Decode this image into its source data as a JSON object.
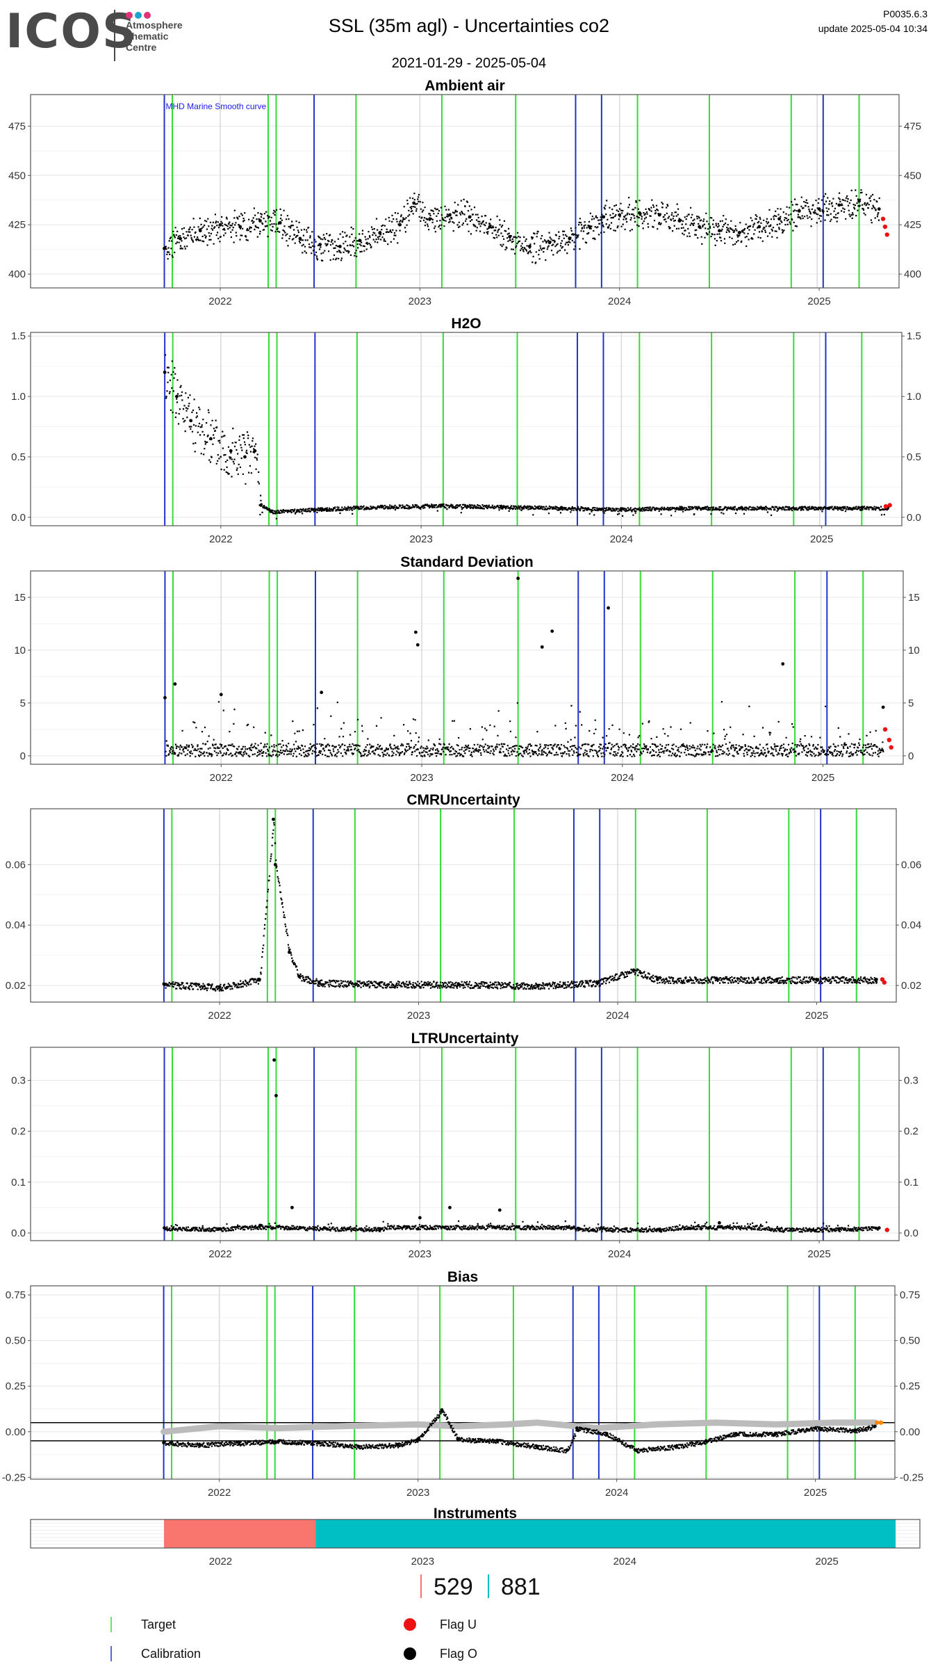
{
  "header": {
    "logo": "ICOS",
    "logo_lines": [
      "Atmosphere",
      "Thematic",
      "Centre"
    ],
    "title": "SSL  (35m agl) - Uncertainties co2",
    "date_range": "2021-01-29 - 2025-05-04",
    "code": "P0035.6.3",
    "update": "update  2025-05-04 10:34"
  },
  "colors": {
    "target": "#33dd33",
    "calibration": "#2233cc",
    "flag_u": "#ee1111",
    "flag_o": "#000000",
    "instrument_1": "#f8766d",
    "instrument_2": "#00bfc4",
    "bias_smooth": "#bbbbbb",
    "bias_last": "#ff8800"
  },
  "events": {
    "calibration": [
      2021.72,
      2022.47,
      2023.78,
      2023.91,
      2025.02
    ],
    "target": [
      2021.76,
      2022.24,
      2022.28,
      2022.68,
      2023.11,
      2023.48,
      2024.09,
      2024.45,
      2024.86,
      2025.2
    ],
    "grey": [
      2022.0,
      2023.0,
      2024.0,
      2024.99
    ]
  },
  "chart_data": [
    {
      "type": "scatter",
      "title": "Ambient air",
      "annotation": "MHD Marine Smooth curve",
      "ylim": [
        393,
        491
      ],
      "yticks": [
        400,
        425,
        450,
        475
      ],
      "xticks": [
        "2022",
        "2023",
        "2024",
        "2025"
      ],
      "series": [
        {
          "name": "Flag O",
          "x": [
            2021.72,
            2021.8,
            2021.9,
            2022.0,
            2022.1,
            2022.2,
            2022.3,
            2022.4,
            2022.5,
            2022.6,
            2022.7,
            2022.8,
            2022.9,
            2022.97,
            2023.05,
            2023.15,
            2023.25,
            2023.35,
            2023.45,
            2023.55,
            2023.65,
            2023.75,
            2023.85,
            2023.92,
            2024.0,
            2024.1,
            2024.2,
            2024.3,
            2024.4,
            2024.5,
            2024.6,
            2024.7,
            2024.8,
            2024.9,
            2025.0,
            2025.1,
            2025.2,
            2025.3
          ],
          "y": [
            413,
            418,
            422,
            425,
            424,
            427,
            426,
            418,
            415,
            414,
            417,
            421,
            425,
            436,
            428,
            430,
            429,
            424,
            419,
            414,
            416,
            418,
            424,
            429,
            430,
            431,
            430,
            427,
            424,
            422,
            421,
            424,
            428,
            432,
            433,
            435,
            437,
            433
          ]
        },
        {
          "name": "Flag U",
          "x": [
            2025.32,
            2025.33,
            2025.34
          ],
          "y": [
            428,
            424,
            420
          ]
        }
      ]
    },
    {
      "type": "scatter",
      "title": "H2O",
      "ylim": [
        -0.07,
        1.53
      ],
      "yticks": [
        0.0,
        0.5,
        1.0,
        1.5
      ],
      "xticks": [
        "2022",
        "2023",
        "2024",
        "2025"
      ],
      "series": [
        {
          "name": "Flag O",
          "x": [
            2021.72,
            2021.78,
            2021.85,
            2021.95,
            2022.05,
            2022.12,
            2022.17,
            2022.2,
            2022.25,
            2022.5,
            2022.8,
            2023.1,
            2023.4,
            2023.7,
            2024.0,
            2024.3,
            2024.6,
            2024.9,
            2025.2,
            2025.33
          ],
          "y": [
            1.2,
            1.0,
            0.8,
            0.65,
            0.55,
            0.5,
            0.55,
            0.1,
            0.05,
            0.07,
            0.09,
            0.1,
            0.09,
            0.08,
            0.07,
            0.08,
            0.08,
            0.08,
            0.08,
            0.08
          ]
        },
        {
          "name": "Flag U",
          "x": [
            2025.32,
            2025.34
          ],
          "y": [
            0.09,
            0.1
          ]
        }
      ]
    },
    {
      "type": "scatter",
      "title": "Standard Deviation",
      "ylim": [
        -0.8,
        17.5
      ],
      "yticks": [
        0,
        5,
        10,
        15
      ],
      "xticks": [
        "2022",
        "2023",
        "2024",
        "2025"
      ],
      "series": [
        {
          "name": "Flag O",
          "x": [
            2021.72,
            2021.77,
            2022.0,
            2022.5,
            2022.97,
            2022.98,
            2023.48,
            2023.6,
            2023.65,
            2023.93,
            2024.8,
            2025.3
          ],
          "y": [
            5.5,
            6.8,
            5.8,
            6.0,
            11.7,
            10.5,
            16.8,
            10.3,
            11.8,
            14.0,
            8.7,
            4.6
          ]
        },
        {
          "name": "Flag U",
          "x": [
            2025.31,
            2025.33,
            2025.34
          ],
          "y": [
            2.5,
            1.5,
            0.8
          ]
        }
      ]
    },
    {
      "type": "scatter",
      "title": "CMRUncertainty",
      "ylim": [
        0.0145,
        0.0785
      ],
      "yticks": [
        0.02,
        0.04,
        0.06
      ],
      "xticks": [
        "2022",
        "2023",
        "2024",
        "2025"
      ],
      "series": [
        {
          "name": "Flag O",
          "x": [
            2021.72,
            2022.0,
            2022.2,
            2022.27,
            2022.28,
            2022.35,
            2022.4,
            2022.5,
            2022.8,
            2023.2,
            2023.6,
            2023.9,
            2024.08,
            2024.2,
            2024.5,
            2024.8,
            2025.0,
            2025.3
          ],
          "y": [
            0.0205,
            0.0195,
            0.022,
            0.075,
            0.06,
            0.031,
            0.023,
            0.021,
            0.0205,
            0.0205,
            0.02,
            0.021,
            0.025,
            0.022,
            0.022,
            0.022,
            0.022,
            0.022
          ]
        },
        {
          "name": "Flag U",
          "x": [
            2025.33,
            2025.34
          ],
          "y": [
            0.022,
            0.021
          ]
        }
      ]
    },
    {
      "type": "scatter",
      "title": "LTRUncertainty",
      "ylim": [
        -0.015,
        0.365
      ],
      "yticks": [
        0.0,
        0.1,
        0.2,
        0.3
      ],
      "xticks": [
        "2022",
        "2023",
        "2024",
        "2025"
      ],
      "series": [
        {
          "name": "Flag O",
          "x": [
            2021.72,
            2022.0,
            2022.2,
            2022.27,
            2022.28,
            2022.36,
            2022.4,
            2022.8,
            2023.0,
            2023.15,
            2023.4,
            2023.8,
            2024.2,
            2024.5,
            2024.8,
            2025.1,
            2025.3
          ],
          "y": [
            0.01,
            0.008,
            0.015,
            0.34,
            0.27,
            0.05,
            0.01,
            0.008,
            0.03,
            0.05,
            0.045,
            0.008,
            0.007,
            0.02,
            0.007,
            0.008,
            0.01
          ]
        },
        {
          "name": "Flag U",
          "x": [
            2025.34
          ],
          "y": [
            0.006
          ]
        }
      ]
    },
    {
      "type": "scatter",
      "title": "Bias",
      "ylim": [
        -0.26,
        0.8
      ],
      "yticks": [
        -0.25,
        0.0,
        0.25,
        0.5,
        0.75
      ],
      "xticks": [
        "2022",
        "2023",
        "2024",
        "2025"
      ],
      "hlines": [
        0.05,
        -0.05
      ],
      "series": [
        {
          "name": "Flag O",
          "x": [
            2021.72,
            2021.9,
            2022.1,
            2022.3,
            2022.5,
            2022.7,
            2022.9,
            2023.0,
            2023.12,
            2023.2,
            2023.4,
            2023.6,
            2023.75,
            2023.8,
            2023.95,
            2024.1,
            2024.3,
            2024.45,
            2024.6,
            2024.8,
            2025.0,
            2025.2,
            2025.3
          ],
          "y": [
            -0.06,
            -0.07,
            -0.06,
            -0.05,
            -0.06,
            -0.08,
            -0.07,
            -0.04,
            0.12,
            -0.04,
            -0.05,
            -0.08,
            -0.1,
            0.02,
            -0.01,
            -0.1,
            -0.08,
            -0.05,
            -0.01,
            -0.01,
            0.02,
            0.01,
            0.03
          ]
        },
        {
          "name": "smooth",
          "x": [
            2021.72,
            2022.0,
            2022.3,
            2022.6,
            2023.0,
            2023.2,
            2023.45,
            2023.6,
            2023.9,
            2024.2,
            2024.5,
            2024.8,
            2025.1,
            2025.3
          ],
          "y": [
            0.0,
            0.03,
            0.02,
            0.03,
            0.04,
            0.03,
            0.04,
            0.05,
            0.02,
            0.04,
            0.05,
            0.04,
            0.05,
            0.05
          ]
        },
        {
          "name": "last",
          "x": [
            2025.31,
            2025.33
          ],
          "y": [
            0.05,
            0.05
          ]
        }
      ]
    },
    {
      "type": "bar",
      "title": "Instruments",
      "xticks": [
        "2022",
        "2023",
        "2024",
        "2025"
      ],
      "segments": [
        {
          "id": "529",
          "start": 2021.72,
          "end": 2022.47
        },
        {
          "id": "881",
          "start": 2022.47,
          "end": 2025.34
        }
      ]
    }
  ],
  "instrument_labels": [
    "529",
    "881"
  ],
  "legend": [
    {
      "label": "Target",
      "kind": "vline",
      "color": "#33dd33"
    },
    {
      "label": "Calibration",
      "kind": "vline",
      "color": "#2233cc"
    },
    {
      "label": "Flag U",
      "kind": "dot",
      "color": "#ee1111"
    },
    {
      "label": "Flag O",
      "kind": "dot",
      "color": "#000000"
    }
  ]
}
